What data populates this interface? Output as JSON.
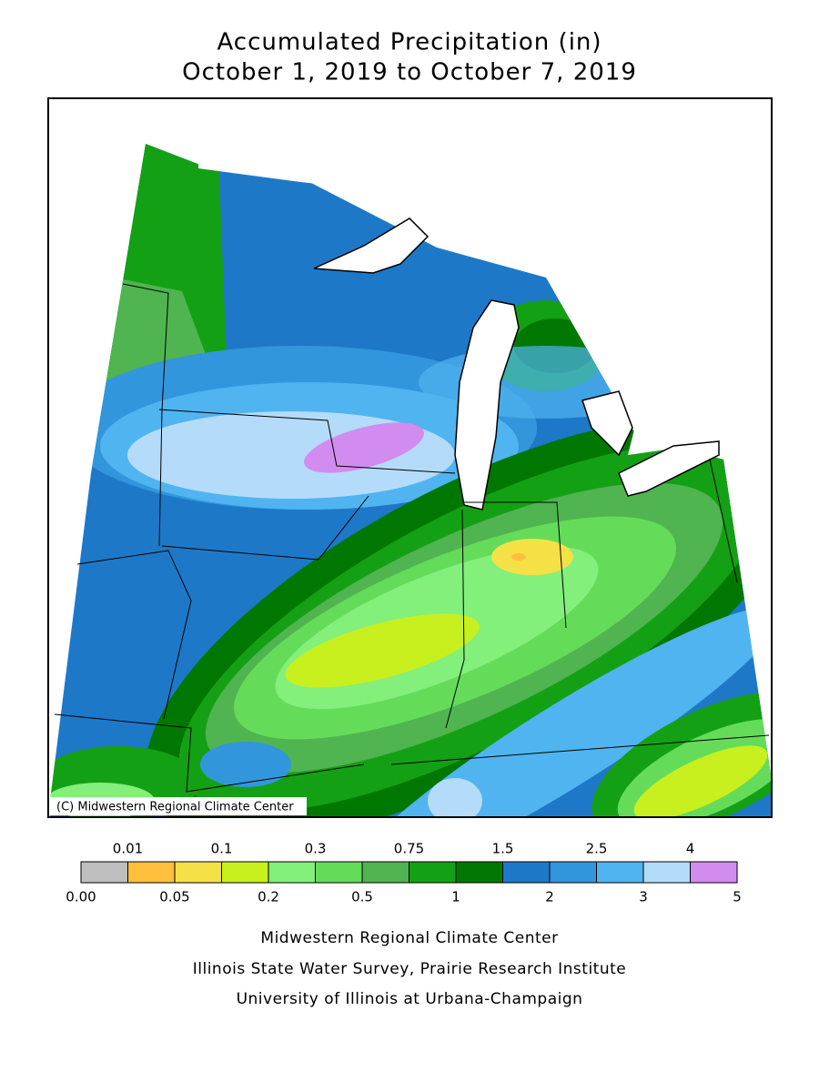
{
  "title": [
    "Accumulated Precipitation (in)",
    "October 1, 2019 to October 7, 2019"
  ],
  "map": {
    "copyright": "(C) Midwestern Regional Climate Center"
  },
  "legend": {
    "breaks": [
      {
        "value": 0,
        "label": "0.00"
      },
      0.01,
      0.05,
      0.1,
      0.2,
      0.3,
      0.5,
      0.75,
      1,
      1.5,
      2,
      2.5,
      3,
      4,
      5
    ],
    "colors": [
      "#bebebe",
      "#ffbe3c",
      "#f5e146",
      "#c8f01e",
      "#82f07a",
      "#64dc5a",
      "#50b450",
      "#14a014",
      "#007800",
      "#1e78c8",
      "#3296dc",
      "#50b4f0",
      "#b4dcfa",
      "#d28cf0"
    ]
  },
  "footer": [
    "Midwestern Regional Climate Center",
    "Illinois State Water Survey, Prairie Research Institute",
    "University of Illinois at Urbana-Champaign"
  ]
}
